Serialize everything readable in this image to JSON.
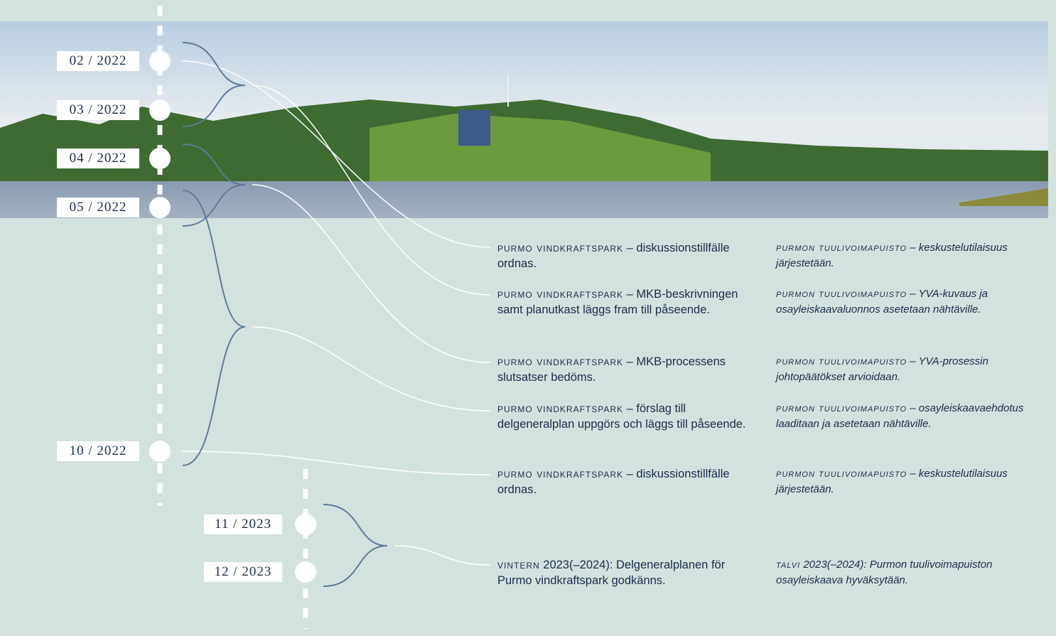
{
  "timeline": {
    "dates": [
      "02 / 2022",
      "03 / 2022",
      "04 / 2022",
      "05 / 2022",
      "10 / 2022",
      "11 / 2023",
      "12 / 2023"
    ],
    "entries": [
      {
        "sv_prefix": "purmo vindkraftspark",
        "sv_text": "– diskussionstillfälle ordnas.",
        "fi_prefix": "purmon tuulivoimapuisto",
        "fi_text": "– keskustelutilaisuus järjestetään."
      },
      {
        "sv_prefix": "purmo vindkraftspark",
        "sv_text": "– MKB-beskrivningen samt planutkast läggs fram till påseende.",
        "fi_prefix": "purmon tuulivoimapuisto",
        "fi_text": "– YVA-kuvaus ja osayleiskaavaluonnos asetetaan nähtäville."
      },
      {
        "sv_prefix": "purmo vindkraftspark",
        "sv_text": "– MKB-processens slutsatser bedöms.",
        "fi_prefix": "purmon tuulivoimapuisto",
        "fi_text": "– YVA-prosessin johtopäätökset arvioidaan."
      },
      {
        "sv_prefix": "purmo vindkraftspark",
        "sv_text": "– förslag till delgeneralplan uppgörs och läggs till påseende.",
        "fi_prefix": "purmon tuulivoimapuisto",
        "fi_text": "– osayleiskaavaehdotus laaditaan ja asetetaan nähtäville."
      },
      {
        "sv_prefix": "purmo vindkraftspark",
        "sv_text": "– diskussionstillfälle ordnas.",
        "fi_prefix": "purmon tuulivoimapuisto",
        "fi_text": "– keskustelutilaisuus järjestetään."
      },
      {
        "sv_prefix": "vintern",
        "sv_text": "2023(–2024): Delgeneralplanen för Purmo vindkraftspark godkänns.",
        "fi_prefix": "talvi",
        "fi_text": "2023(–2024): Purmon tuulivoimapuiston osayleiskaava hyväksytään."
      }
    ]
  }
}
